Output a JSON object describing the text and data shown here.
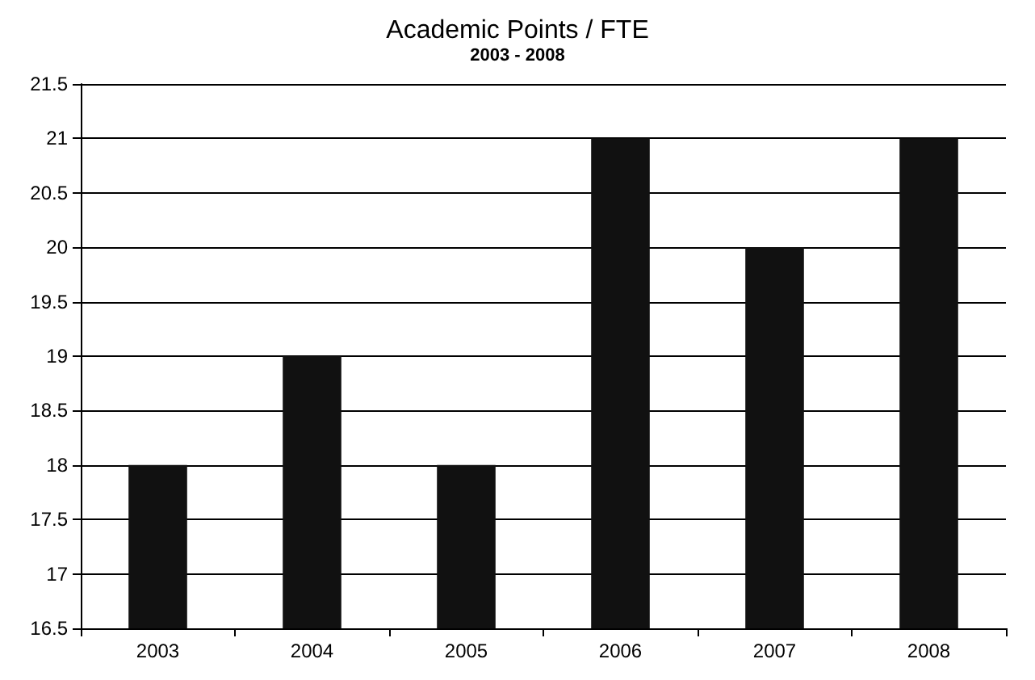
{
  "chart_data": {
    "type": "bar",
    "title": "Academic Points / FTE",
    "subtitle": "2003 - 2008",
    "categories": [
      "2003",
      "2004",
      "2005",
      "2006",
      "2007",
      "2008"
    ],
    "values": [
      18,
      19,
      18,
      21,
      20,
      21
    ],
    "color": "#111111",
    "ylim": [
      16.5,
      21.5
    ],
    "yticks": [
      16.5,
      17,
      17.5,
      18,
      18.5,
      19,
      19.5,
      20,
      20.5,
      21,
      21.5
    ],
    "grid": "y"
  }
}
